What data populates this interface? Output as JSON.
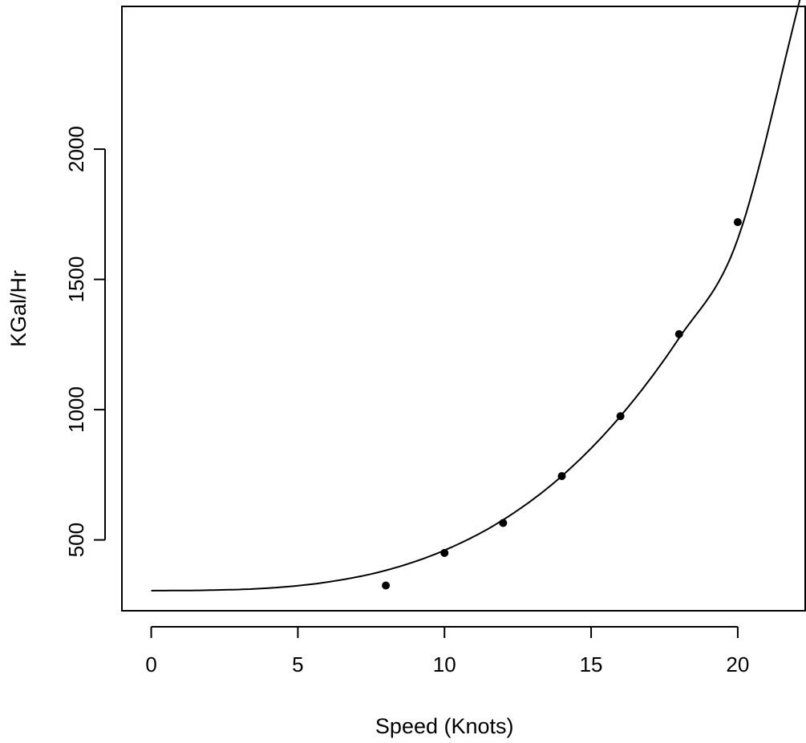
{
  "chart_data": {
    "type": "scatter",
    "title": "",
    "xlabel": "Speed (Knots)",
    "ylabel": "KGal/Hr",
    "xlim": [
      -1,
      22.3
    ],
    "ylim": [
      228,
      2548
    ],
    "x_ticks": [
      0,
      5,
      10,
      15,
      20
    ],
    "y_ticks": [
      500,
      1000,
      1500,
      2000
    ],
    "grid": false,
    "legend": "none",
    "series": [
      {
        "kind": "points",
        "x": [
          8,
          10,
          12,
          14,
          16,
          18,
          20
        ],
        "y": [
          325,
          450,
          565,
          745,
          975,
          1290,
          1720
        ]
      },
      {
        "kind": "fitted-curve",
        "x": [
          0,
          2,
          4,
          6,
          8,
          10,
          12,
          14,
          16,
          18,
          20,
          22.2
        ],
        "y": [
          305,
          307,
          315,
          338,
          383,
          460,
          577,
          745,
          975,
          1275,
          1655,
          2610
        ]
      }
    ],
    "colors": {
      "axis": "#000000",
      "points": "#000000",
      "curve": "#000000"
    }
  }
}
